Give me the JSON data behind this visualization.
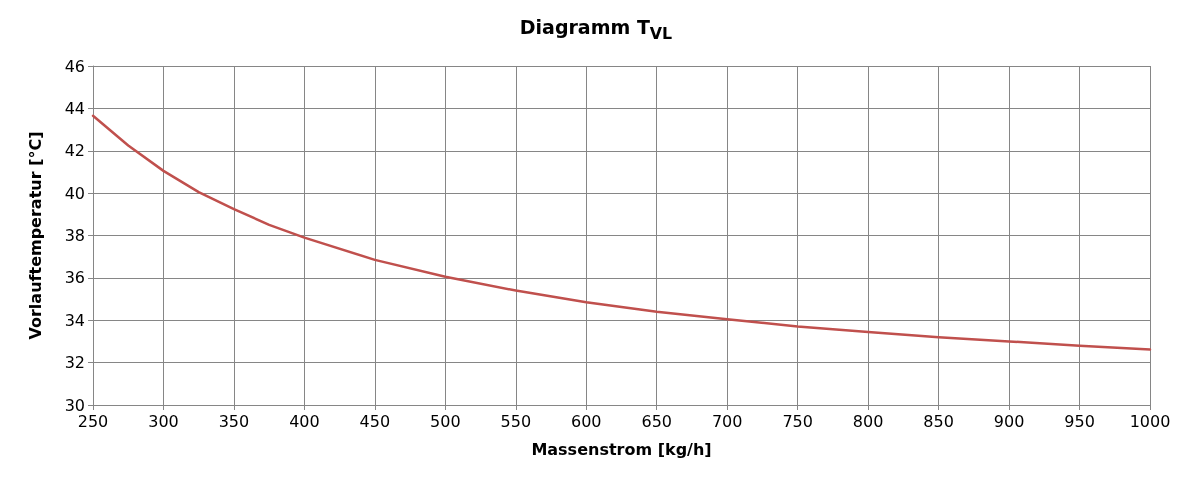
{
  "chart_data": {
    "type": "line",
    "title": "Diagramm T$_{VL}$",
    "xlabel": "Massenstrom [kg/h]",
    "ylabel": "Vorlauftemperatur [°C]",
    "x": [
      250,
      275,
      300,
      325,
      350,
      375,
      400,
      450,
      500,
      550,
      600,
      650,
      700,
      750,
      800,
      850,
      900,
      950,
      1000
    ],
    "series": [
      {
        "color": "#c0504d",
        "values": [
          43.65,
          42.25,
          41.05,
          40.05,
          39.25,
          38.5,
          37.9,
          36.85,
          36.05,
          35.4,
          34.85,
          34.4,
          34.05,
          33.7,
          33.45,
          33.2,
          33.0,
          32.8,
          32.62
        ]
      }
    ],
    "xlim": [
      250,
      1000
    ],
    "xticks": [
      250,
      300,
      350,
      400,
      450,
      500,
      550,
      600,
      650,
      700,
      750,
      800,
      850,
      900,
      950,
      1000
    ],
    "ylim": [
      30,
      46
    ],
    "yticks": [
      30,
      32,
      34,
      36,
      38,
      40,
      42,
      44,
      46
    ],
    "grid": true,
    "marker": "none",
    "line_style": "solid"
  }
}
